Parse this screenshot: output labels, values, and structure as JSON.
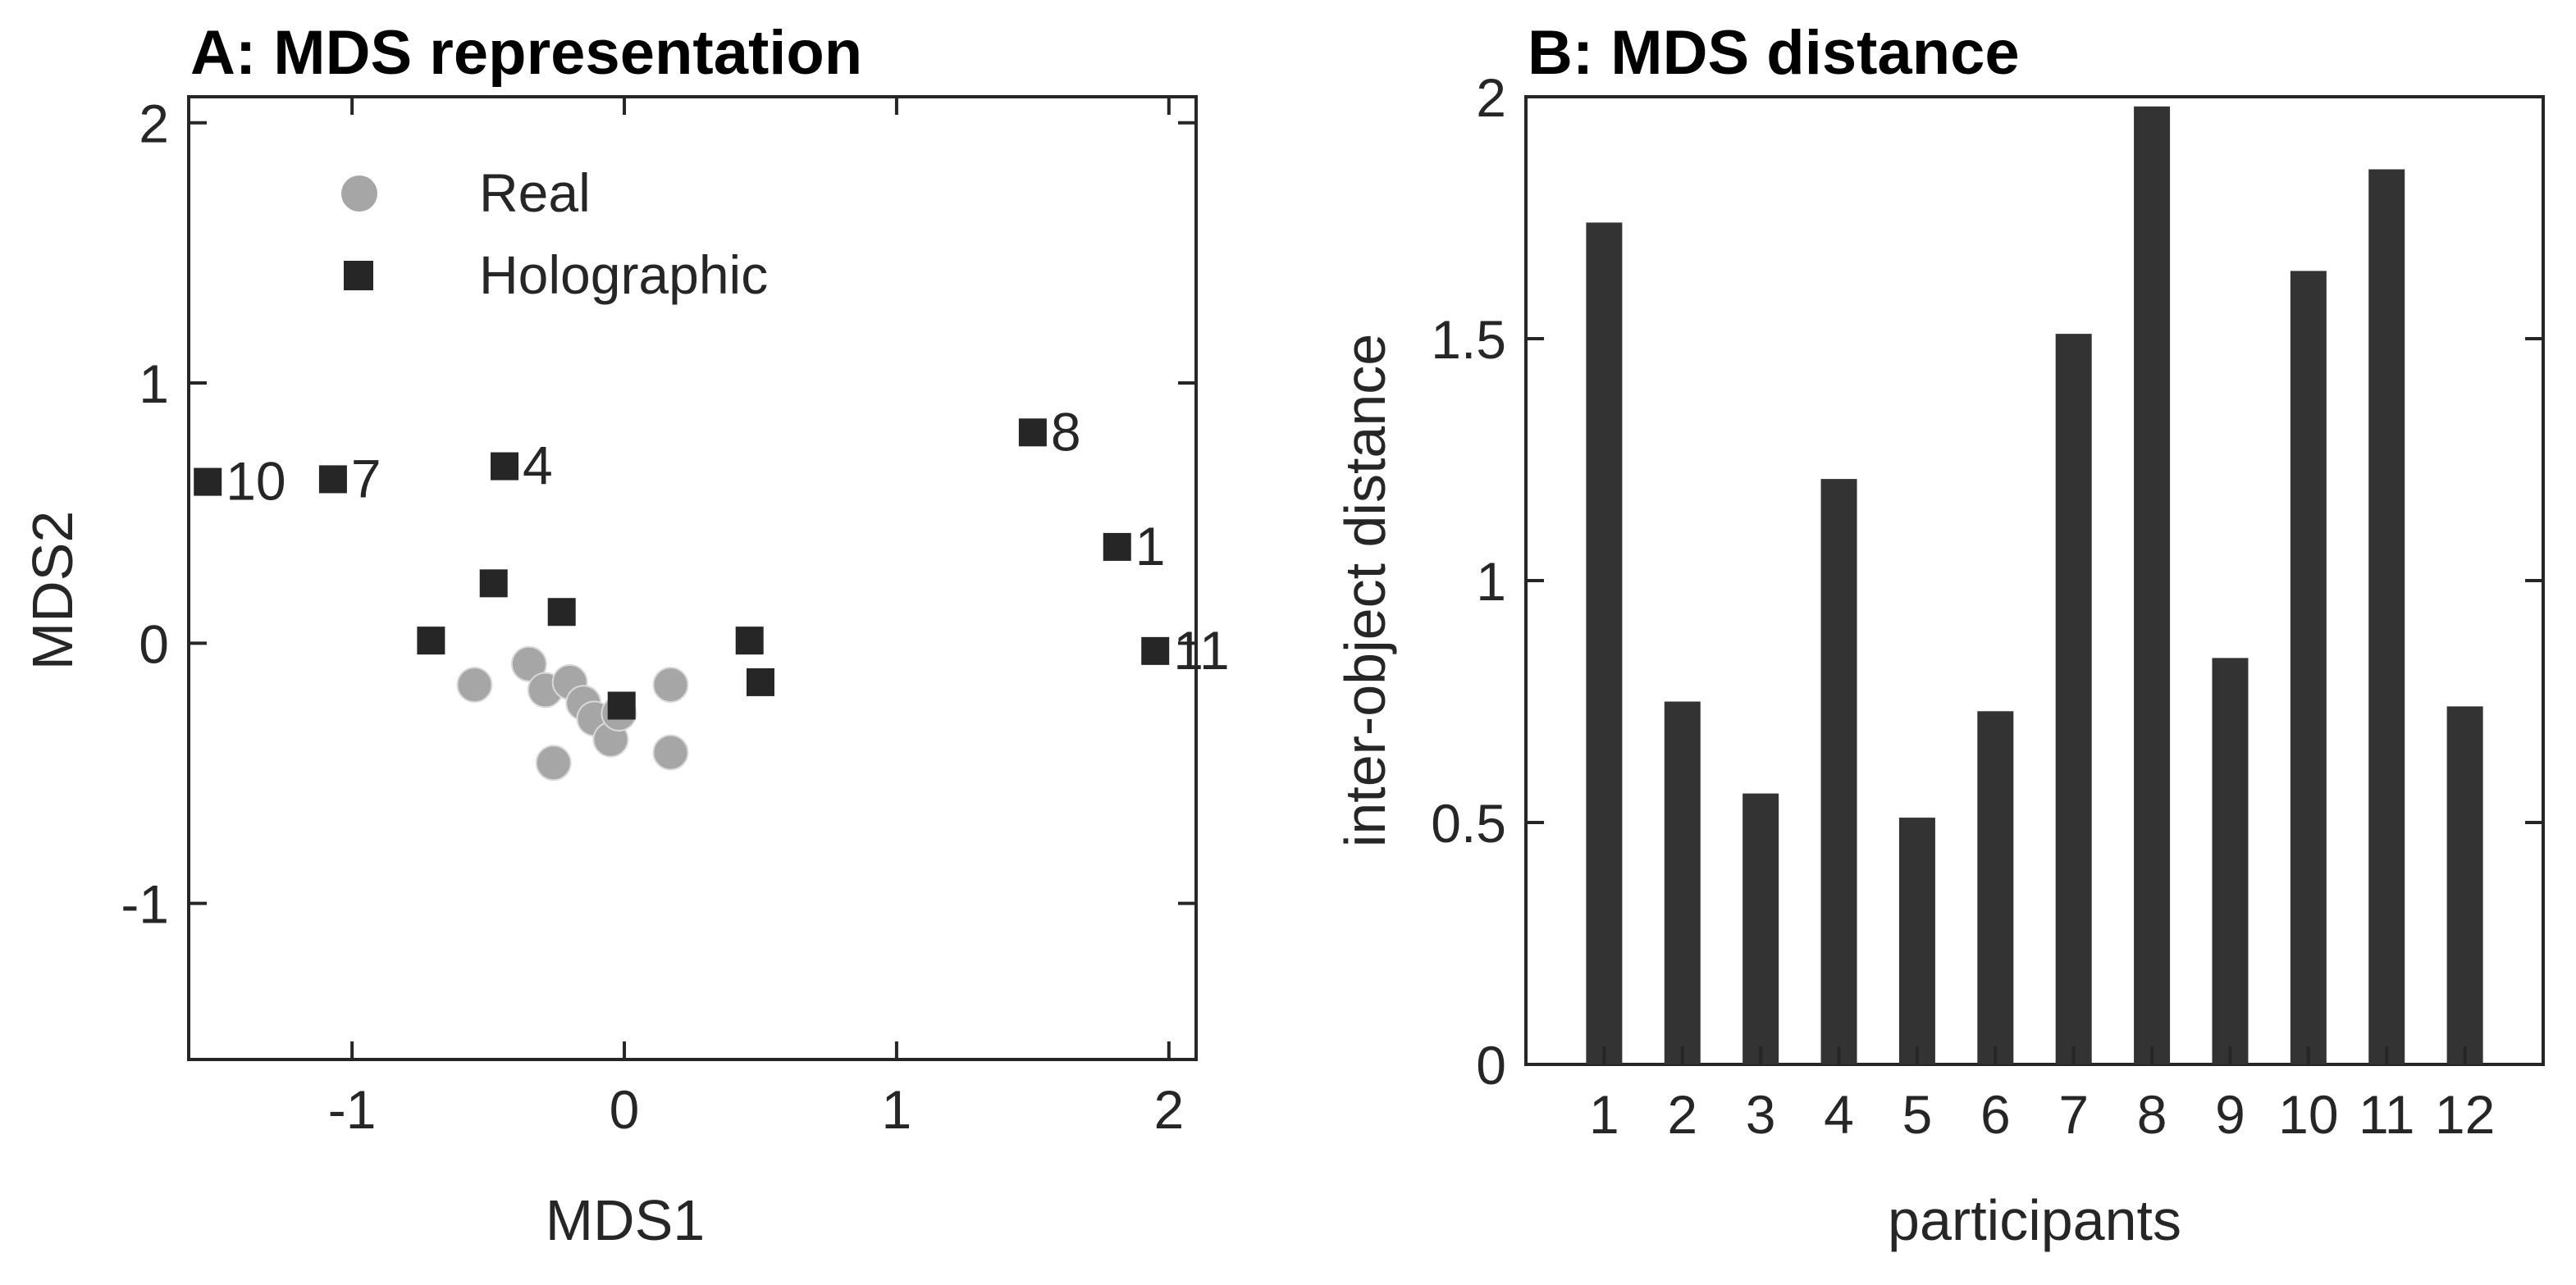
{
  "chart_data": [
    {
      "type": "scatter",
      "title": "A: MDS representation",
      "xlabel": "MDS1",
      "ylabel": "MDS2",
      "xlim": [
        -1.6,
        2.1
      ],
      "ylim": [
        -1.6,
        2.1
      ],
      "xticks": [
        -1,
        0,
        1,
        2
      ],
      "yticks": [
        -1,
        0,
        1,
        2
      ],
      "xtick_labels": [
        "-1",
        "0",
        "1",
        "2"
      ],
      "ytick_labels": [
        "-1",
        "0",
        "1",
        "2"
      ],
      "legend_position": "top-left",
      "colors": {
        "Real": "#a6a6a6",
        "Holographic": "#262626"
      },
      "series": [
        {
          "name": "Real",
          "marker": "circle",
          "points": [
            {
              "x": -0.55,
              "y": -0.16
            },
            {
              "x": -0.35,
              "y": -0.08
            },
            {
              "x": -0.29,
              "y": -0.18
            },
            {
              "x": -0.2,
              "y": -0.15
            },
            {
              "x": -0.15,
              "y": -0.23
            },
            {
              "x": -0.11,
              "y": -0.29
            },
            {
              "x": -0.05,
              "y": -0.37
            },
            {
              "x": -0.26,
              "y": -0.46
            },
            {
              "x": 0.17,
              "y": -0.16
            },
            {
              "x": 0.17,
              "y": -0.42
            },
            {
              "x": -0.02,
              "y": -0.27
            }
          ]
        },
        {
          "name": "Holographic",
          "marker": "square",
          "points": [
            {
              "x": -1.53,
              "y": 0.62,
              "label": "10"
            },
            {
              "x": -1.07,
              "y": 0.63,
              "label": "7"
            },
            {
              "x": -0.44,
              "y": 0.68,
              "label": "4"
            },
            {
              "x": 1.5,
              "y": 0.81,
              "label": "8"
            },
            {
              "x": 1.81,
              "y": 0.37,
              "label": "1"
            },
            {
              "x": 1.95,
              "y": -0.03,
              "label": "11"
            },
            {
              "x": -0.48,
              "y": 0.23
            },
            {
              "x": -0.23,
              "y": 0.12
            },
            {
              "x": -0.71,
              "y": 0.01
            },
            {
              "x": 0.46,
              "y": 0.01
            },
            {
              "x": 0.5,
              "y": -0.15
            },
            {
              "x": -0.01,
              "y": -0.24
            }
          ]
        }
      ]
    },
    {
      "type": "bar",
      "title": "B: MDS distance",
      "xlabel": "participants",
      "ylabel": "inter-object distance",
      "categories": [
        "1",
        "2",
        "3",
        "4",
        "5",
        "6",
        "7",
        "8",
        "9",
        "10",
        "11",
        "12"
      ],
      "values": [
        1.74,
        0.75,
        0.56,
        1.21,
        0.51,
        0.73,
        1.51,
        1.98,
        0.84,
        1.64,
        1.85,
        0.74
      ],
      "ylim": [
        0,
        2
      ],
      "yticks": [
        0,
        0.5,
        1,
        1.5,
        2
      ],
      "ytick_labels": [
        "0",
        "0.5",
        "1",
        "1.5",
        "2"
      ],
      "color": "#333333"
    }
  ]
}
